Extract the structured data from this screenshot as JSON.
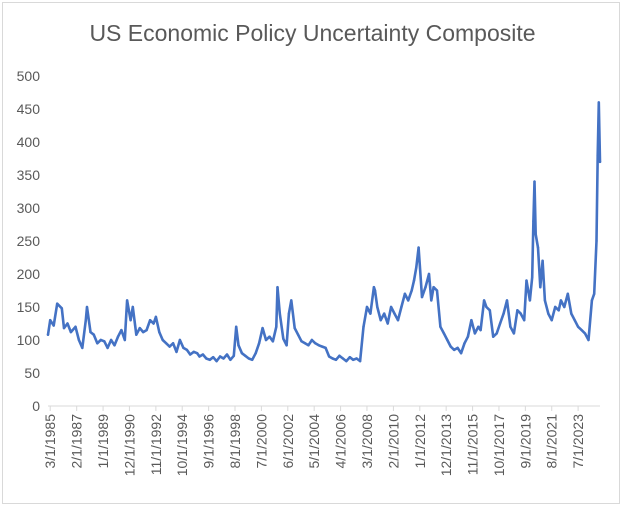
{
  "chart_data": {
    "type": "line",
    "title": "US Economic Policy Uncertainty Composite",
    "xlabel": "",
    "ylabel": "",
    "ylim": [
      0,
      500
    ],
    "yticks": [
      0,
      50,
      100,
      150,
      200,
      250,
      300,
      350,
      400,
      450,
      500
    ],
    "xlim": [
      "1985-01-01",
      "2025-02-01"
    ],
    "xtick_labels": [
      "3/1/1985",
      "2/1/1987",
      "1/1/1989",
      "12/1/1990",
      "11/1/1992",
      "10/1/1994",
      "9/1/1996",
      "8/1/1998",
      "7/1/2000",
      "6/1/2002",
      "5/1/2004",
      "4/1/2006",
      "3/1/2008",
      "2/1/2010",
      "1/1/2012",
      "12/1/2013",
      "11/1/2015",
      "10/1/2017",
      "9/1/2019",
      "8/1/2021",
      "7/1/2023"
    ],
    "xtick_dates": [
      "1985-03-01",
      "1987-02-01",
      "1989-01-01",
      "1990-12-01",
      "1992-11-01",
      "1994-10-01",
      "1996-09-01",
      "1998-08-01",
      "2000-07-01",
      "2002-06-01",
      "2004-05-01",
      "2006-04-01",
      "2008-03-01",
      "2010-02-01",
      "2012-01-01",
      "2013-12-01",
      "2015-11-01",
      "2017-10-01",
      "2019-09-01",
      "2021-08-01",
      "2023-07-01"
    ],
    "grid": false,
    "legend": "none",
    "color": "#4472C4",
    "series": [
      {
        "x": [
          "1985-01-01",
          "1985-03-01",
          "1985-06-01",
          "1985-09-01",
          "1986-01-01",
          "1986-03-01",
          "1986-06-01",
          "1986-09-01",
          "1987-01-01",
          "1987-04-01",
          "1987-07-01",
          "1987-10-01",
          "1987-11-01",
          "1988-02-01",
          "1988-05-01",
          "1988-08-01",
          "1988-11-01",
          "1989-02-01",
          "1989-05-01",
          "1989-08-01",
          "1989-11-01",
          "1990-02-01",
          "1990-05-01",
          "1990-08-01",
          "1990-10-01",
          "1991-01-01",
          "1991-03-01",
          "1991-06-01",
          "1991-09-01",
          "1991-12-01",
          "1992-03-01",
          "1992-06-01",
          "1992-09-01",
          "1992-11-01",
          "1993-02-01",
          "1993-05-01",
          "1993-08-01",
          "1993-11-01",
          "1994-02-01",
          "1994-05-01",
          "1994-08-01",
          "1994-11-01",
          "1995-02-01",
          "1995-05-01",
          "1995-08-01",
          "1995-11-01",
          "1996-01-01",
          "1996-04-01",
          "1996-07-01",
          "1996-10-01",
          "1997-01-01",
          "1997-04-01",
          "1997-07-01",
          "1997-10-01",
          "1998-01-01",
          "1998-04-01",
          "1998-07-01",
          "1998-09-01",
          "1998-11-01",
          "1999-02-01",
          "1999-05-01",
          "1999-08-01",
          "1999-11-01",
          "2000-02-01",
          "2000-05-01",
          "2000-08-01",
          "2000-11-01",
          "2001-02-01",
          "2001-05-01",
          "2001-08-01",
          "2001-09-01",
          "2001-11-01",
          "2002-02-01",
          "2002-05-01",
          "2002-07-01",
          "2002-09-01",
          "2002-12-01",
          "2003-03-01",
          "2003-06-01",
          "2003-09-01",
          "2003-12-01",
          "2004-03-01",
          "2004-06-01",
          "2004-09-01",
          "2004-12-01",
          "2005-03-01",
          "2005-06-01",
          "2005-09-01",
          "2005-12-01",
          "2006-03-01",
          "2006-06-01",
          "2006-09-01",
          "2006-12-01",
          "2007-03-01",
          "2007-06-01",
          "2007-09-01",
          "2007-12-01",
          "2008-03-01",
          "2008-06-01",
          "2008-09-01",
          "2008-10-01",
          "2008-12-01",
          "2009-03-01",
          "2009-06-01",
          "2009-09-01",
          "2009-12-01",
          "2010-03-01",
          "2010-06-01",
          "2010-09-01",
          "2010-12-01",
          "2011-03-01",
          "2011-06-01",
          "2011-08-01",
          "2011-10-01",
          "2011-12-01",
          "2012-03-01",
          "2012-06-01",
          "2012-09-01",
          "2012-11-01",
          "2013-01-01",
          "2013-04-01",
          "2013-07-01",
          "2013-10-01",
          "2014-01-01",
          "2014-04-01",
          "2014-07-01",
          "2014-10-01",
          "2015-01-01",
          "2015-04-01",
          "2015-07-01",
          "2015-10-01",
          "2016-01-01",
          "2016-04-01",
          "2016-06-01",
          "2016-09-01",
          "2016-11-01",
          "2017-02-01",
          "2017-05-01",
          "2017-08-01",
          "2017-11-01",
          "2018-02-01",
          "2018-05-01",
          "2018-08-01",
          "2018-11-01",
          "2019-02-01",
          "2019-05-01",
          "2019-08-01",
          "2019-10-01",
          "2020-01-01",
          "2020-03-01",
          "2020-04-01",
          "2020-05-01",
          "2020-06-01",
          "2020-08-01",
          "2020-10-01",
          "2020-12-01",
          "2021-02-01",
          "2021-05-01",
          "2021-08-01",
          "2021-11-01",
          "2022-02-01",
          "2022-04-01",
          "2022-07-01",
          "2022-10-01",
          "2023-01-01",
          "2023-04-01",
          "2023-07-01",
          "2023-10-01",
          "2024-01-01",
          "2024-04-01",
          "2024-07-01",
          "2024-09-01",
          "2024-11-01",
          "2024-12-01",
          "2025-01-01",
          "2025-02-01"
        ],
        "y": [
          108,
          130,
          122,
          155,
          148,
          118,
          125,
          112,
          120,
          100,
          88,
          130,
          150,
          112,
          108,
          95,
          100,
          98,
          88,
          100,
          92,
          105,
          115,
          100,
          160,
          130,
          150,
          108,
          118,
          112,
          115,
          130,
          125,
          135,
          112,
          100,
          95,
          90,
          95,
          82,
          100,
          88,
          85,
          78,
          82,
          80,
          75,
          78,
          72,
          70,
          74,
          68,
          75,
          72,
          78,
          70,
          76,
          120,
          92,
          80,
          76,
          72,
          70,
          80,
          95,
          118,
          100,
          105,
          98,
          120,
          180,
          140,
          102,
          92,
          140,
          160,
          118,
          108,
          98,
          95,
          92,
          100,
          95,
          92,
          90,
          88,
          75,
          72,
          70,
          76,
          72,
          68,
          74,
          70,
          72,
          68,
          120,
          150,
          140,
          180,
          175,
          150,
          130,
          140,
          125,
          150,
          140,
          130,
          150,
          170,
          160,
          175,
          190,
          210,
          240,
          165,
          180,
          200,
          160,
          180,
          175,
          120,
          110,
          100,
          90,
          85,
          88,
          80,
          95,
          105,
          130,
          110,
          120,
          115,
          160,
          150,
          145,
          105,
          110,
          125,
          140,
          160,
          120,
          110,
          145,
          140,
          130,
          190,
          160,
          195,
          280,
          340,
          260,
          240,
          180,
          220,
          160,
          140,
          130,
          150,
          145,
          160,
          150,
          170,
          140,
          130,
          120,
          115,
          110,
          100,
          160,
          170,
          250,
          380,
          460,
          370
        ]
      }
    ]
  }
}
